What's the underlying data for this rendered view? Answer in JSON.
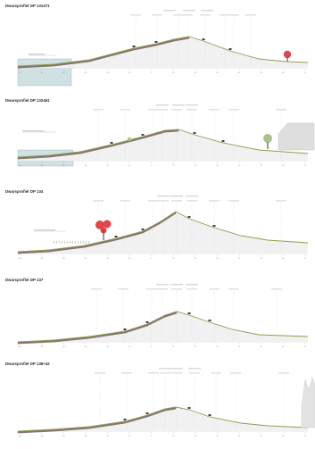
{
  "colors": {
    "ground": "#8a7470",
    "ground_dark": "#6e5a57",
    "grass": "#8da04f",
    "water": "#cfe1e3",
    "water_line": "#93b6ba",
    "baseline": "#cfcfcf",
    "tree_red": "#e0454b",
    "tree_green": "#a9c28d",
    "building": "#dedede",
    "cliff": "#e3e3e3"
  },
  "profiles": [
    {
      "title": "Dwarsprofiel DP 131471",
      "has_water": true,
      "vegetation": "red tree on land side",
      "axis_ticks": [
        "-60",
        "-50",
        "-40",
        "-30",
        "-20",
        "-10",
        "0",
        "10",
        "20",
        "30",
        "40",
        "50",
        "60",
        "70"
      ]
    },
    {
      "title": "Dwarsprofiel DP 132461",
      "has_water": true,
      "vegetation": "green tree and building on land side",
      "axis_ticks": [
        "-60",
        "-50",
        "-40",
        "-30",
        "-20",
        "-10",
        "0",
        "10",
        "20",
        "30",
        "40",
        "50",
        "60",
        "70"
      ]
    },
    {
      "title": "Dwarsprofiel DP 134",
      "has_water": false,
      "vegetation": "red trees on outer slope",
      "axis_ticks": [
        "-60",
        "-50",
        "-40",
        "-30",
        "-20",
        "-10",
        "0",
        "10",
        "20",
        "30",
        "40",
        "50",
        "60",
        "70"
      ]
    },
    {
      "title": "Dwarsprofiel DP 137",
      "has_water": false,
      "vegetation": "none",
      "axis_ticks": [
        "-60",
        "-50",
        "-40",
        "-30",
        "-20",
        "-10",
        "0",
        "10",
        "20",
        "30",
        "40",
        "50",
        "60",
        "70"
      ]
    },
    {
      "title": "Dwarsprofiel DP 138+42",
      "has_water": false,
      "vegetation": "cliff on land side",
      "axis_ticks": [
        "-60",
        "-50",
        "-40",
        "-30",
        "-20",
        "-10",
        "0",
        "10",
        "20",
        "30",
        "40",
        "50",
        "60",
        "70"
      ]
    }
  ]
}
